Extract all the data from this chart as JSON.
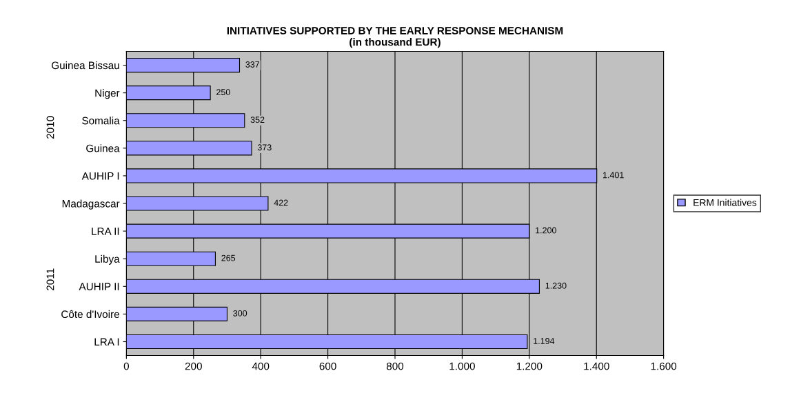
{
  "chart_data": {
    "type": "bar",
    "orientation": "horizontal",
    "title": "INITIATIVES SUPPORTED BY THE EARLY RESPONSE MECHANISM\n(in thousand EUR)",
    "categories": [
      "Guinea Bissau",
      "Niger",
      "Somalia",
      "Guinea",
      "AUHIP I",
      "Madagascar",
      "LRA II",
      "Libya",
      "AUHIP II",
      "Côte d'Ivoire",
      "LRA I"
    ],
    "series": [
      {
        "name": "ERM Initiatives",
        "color": "#9999ff",
        "values": [
          337,
          250,
          352,
          373,
          1401,
          422,
          1200,
          265,
          1230,
          300,
          1194
        ],
        "value_labels": [
          "337",
          "250",
          "352",
          "373",
          "1.401",
          "422",
          "1.200",
          "265",
          "1.230",
          "300",
          "1.194"
        ]
      }
    ],
    "xlim": [
      0,
      1600
    ],
    "xticks": [
      0,
      200,
      400,
      600,
      800,
      {
        "value": 1000,
        "label": "1.000"
      },
      {
        "value": 1200,
        "label": "1.200"
      },
      {
        "value": 1400,
        "label": "1.400"
      },
      {
        "value": 1600,
        "label": "1.600"
      }
    ],
    "grid": "x",
    "legend": "right",
    "annotations": [
      "2010",
      "2011"
    ]
  }
}
